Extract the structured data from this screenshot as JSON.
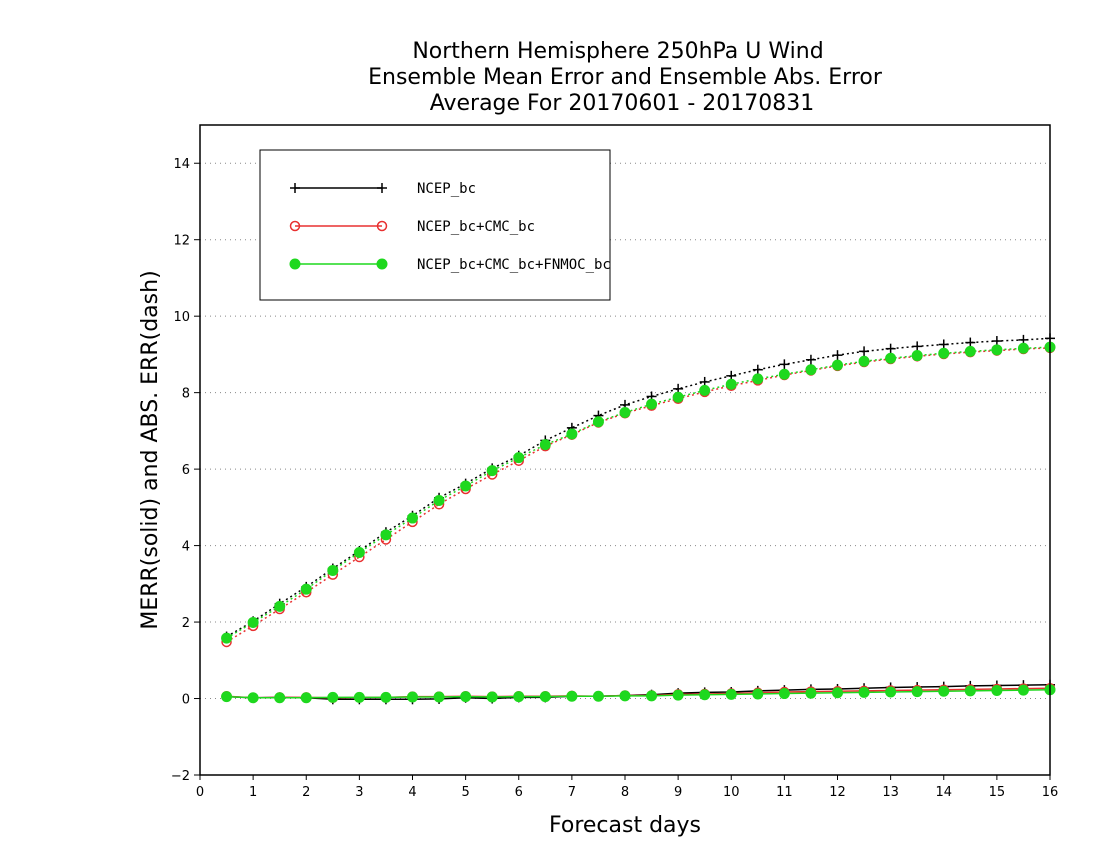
{
  "chart_data": {
    "type": "line",
    "title_lines": [
      "Northern Hemisphere 250hPa U Wind",
      "Ensemble Mean Error and Ensemble Abs. Error",
      "Average For 20170601 - 20170831"
    ],
    "xlabel": "Forecast days",
    "ylabel": "MERR(solid) and ABS. ERR(dash)",
    "xlim": [
      0,
      16
    ],
    "ylim": [
      -2,
      15
    ],
    "x_ticks": [
      0,
      1,
      2,
      3,
      4,
      5,
      6,
      7,
      8,
      9,
      10,
      11,
      12,
      13,
      14,
      15,
      16
    ],
    "y_ticks": [
      -2,
      0,
      2,
      4,
      6,
      8,
      10,
      12,
      14
    ],
    "grid": "horizontal-dotted",
    "legend_position": "top-left",
    "x": [
      0.5,
      1,
      1.5,
      2,
      2.5,
      3,
      3.5,
      4,
      4.5,
      5,
      5.5,
      6,
      6.5,
      7,
      7.5,
      8,
      8.5,
      9,
      9.5,
      10,
      10.5,
      11,
      11.5,
      12,
      12.5,
      13,
      13.5,
      14,
      14.5,
      15,
      15.5,
      16
    ],
    "series": [
      {
        "name": "NCEP_bc",
        "color": "#000000",
        "marker": "plus",
        "abs_err": [
          1.62,
          2.02,
          2.48,
          2.92,
          3.4,
          3.86,
          4.35,
          4.78,
          5.25,
          5.62,
          6.02,
          6.35,
          6.75,
          7.08,
          7.4,
          7.68,
          7.9,
          8.1,
          8.28,
          8.44,
          8.6,
          8.74,
          8.86,
          8.98,
          9.08,
          9.15,
          9.21,
          9.26,
          9.31,
          9.35,
          9.38,
          9.42
        ],
        "mean_err": [
          0.05,
          0.02,
          0.03,
          0.02,
          -0.02,
          -0.02,
          -0.02,
          -0.02,
          -0.01,
          0.02,
          0.0,
          0.03,
          0.03,
          0.06,
          0.06,
          0.08,
          0.1,
          0.14,
          0.16,
          0.17,
          0.2,
          0.22,
          0.24,
          0.25,
          0.27,
          0.29,
          0.3,
          0.31,
          0.33,
          0.34,
          0.35,
          0.36
        ]
      },
      {
        "name": "NCEP_bc+CMC_bc",
        "color": "#e83030",
        "marker": "open-circle",
        "abs_err": [
          1.48,
          1.9,
          2.34,
          2.78,
          3.24,
          3.7,
          4.16,
          4.62,
          5.08,
          5.48,
          5.86,
          6.22,
          6.6,
          6.9,
          7.22,
          7.46,
          7.66,
          7.84,
          8.02,
          8.18,
          8.32,
          8.46,
          8.58,
          8.7,
          8.8,
          8.88,
          8.95,
          9.01,
          9.06,
          9.1,
          9.14,
          9.17
        ],
        "mean_err": [
          0.06,
          0.02,
          0.03,
          0.03,
          0.02,
          0.03,
          0.03,
          0.05,
          0.05,
          0.06,
          0.05,
          0.06,
          0.06,
          0.07,
          0.06,
          0.08,
          0.08,
          0.11,
          0.12,
          0.13,
          0.15,
          0.17,
          0.18,
          0.19,
          0.2,
          0.21,
          0.22,
          0.23,
          0.24,
          0.25,
          0.26,
          0.27
        ]
      },
      {
        "name": "NCEP_bc+CMC_bc+FNMOC_bc",
        "color": "#1ed81e",
        "marker": "filled-circle",
        "abs_err": [
          1.58,
          1.99,
          2.41,
          2.86,
          3.35,
          3.82,
          4.28,
          4.72,
          5.18,
          5.56,
          5.96,
          6.3,
          6.64,
          6.92,
          7.24,
          7.48,
          7.7,
          7.88,
          8.06,
          8.22,
          8.36,
          8.48,
          8.6,
          8.72,
          8.82,
          8.9,
          8.97,
          9.03,
          9.08,
          9.12,
          9.16,
          9.19
        ],
        "mean_err": [
          0.05,
          0.02,
          0.02,
          0.02,
          0.03,
          0.03,
          0.03,
          0.04,
          0.04,
          0.05,
          0.04,
          0.05,
          0.05,
          0.06,
          0.06,
          0.07,
          0.07,
          0.09,
          0.1,
          0.11,
          0.12,
          0.13,
          0.14,
          0.15,
          0.16,
          0.17,
          0.18,
          0.19,
          0.2,
          0.21,
          0.22,
          0.23
        ]
      }
    ]
  }
}
